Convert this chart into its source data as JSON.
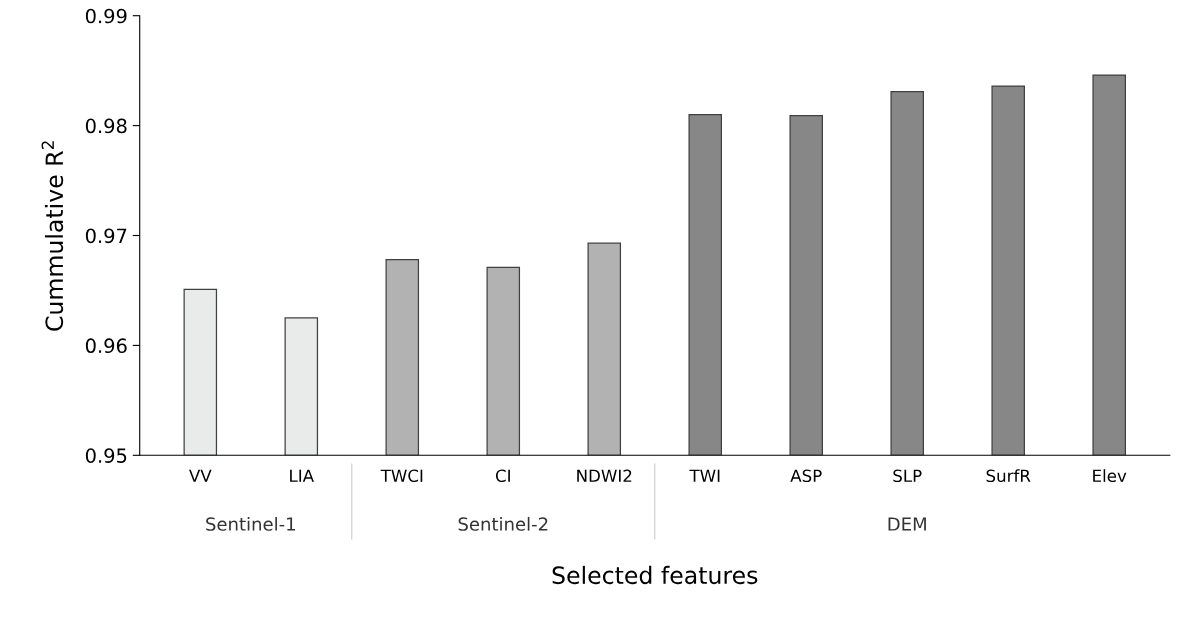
{
  "chart_data": {
    "type": "bar",
    "xlabel": "Selected features",
    "ylabel": "Cummulative R$^{2}$",
    "categories": [
      "VV",
      "LIA",
      "TWCI",
      "CI",
      "NDWI2",
      "TWI",
      "ASP",
      "SLP",
      "SurfR",
      "Elev"
    ],
    "values": [
      0.9651,
      0.9625,
      0.9678,
      0.9671,
      0.9693,
      0.981,
      0.9809,
      0.9831,
      0.9836,
      0.9846
    ],
    "colors": [
      "#e9eaea",
      "#e9eaea",
      "#b1b2b1",
      "#b1b2b1",
      "#b1b2b1",
      "#878787",
      "#878787",
      "#878787",
      "#878787",
      "#878787"
    ],
    "annotations": [
      "Sentinel-1",
      "Sentinel-2",
      "DEM"
    ],
    "ylim": [
      0.95,
      0.99
    ],
    "yticks": [
      0.95,
      0.96,
      0.97,
      0.98,
      0.99
    ],
    "grid": false,
    "legend": false
  }
}
